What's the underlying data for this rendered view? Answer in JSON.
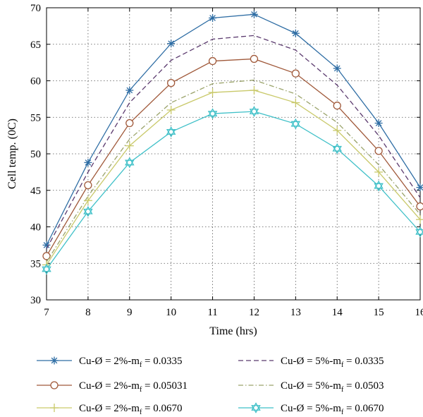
{
  "chart_data": {
    "type": "line",
    "title": "",
    "xlabel": "Time (hrs)",
    "ylabel": "Cell temp. (0C)",
    "xlim": [
      7,
      16
    ],
    "ylim": [
      30,
      70
    ],
    "x_ticks": [
      7,
      8,
      9,
      10,
      11,
      12,
      13,
      14,
      15,
      16
    ],
    "y_ticks": [
      30,
      35,
      40,
      45,
      50,
      55,
      60,
      65,
      70
    ],
    "grid": true,
    "legend_placement": "bottom",
    "x": [
      7,
      8,
      9,
      10,
      11,
      12,
      13,
      14,
      15,
      16
    ],
    "series": [
      {
        "name": "2%-0.0335",
        "label_main": "Cu-Ø = 2%-m",
        "label_sub": "f",
        "label_tail": " = 0.0335",
        "color": "#2e6da4",
        "dash": "solid",
        "marker": "star",
        "values": [
          37.5,
          48.8,
          58.7,
          65.1,
          68.6,
          69.1,
          66.5,
          61.7,
          54.2,
          45.4
        ]
      },
      {
        "name": "5%-0.0335",
        "label_main": "Cu-Ø = 5%-m",
        "label_sub": "f",
        "label_tail": " = 0.0335",
        "color": "#5b3a6e",
        "dash": "dashed",
        "marker": "none",
        "values": [
          37.0,
          47.5,
          57.0,
          62.8,
          65.7,
          66.2,
          64.2,
          59.4,
          52.5,
          44.0
        ]
      },
      {
        "name": "2%-0.05031",
        "label_main": "Cu-Ø = 2%-m",
        "label_sub": "f",
        "label_tail": " = 0.05031",
        "color": "#a0593a",
        "dash": "solid",
        "marker": "circle",
        "values": [
          36.0,
          45.7,
          54.2,
          59.7,
          62.7,
          63.0,
          61.0,
          56.6,
          50.4,
          42.8
        ]
      },
      {
        "name": "5%-0.0503",
        "label_main": "Cu-Ø = 5%-m",
        "label_sub": "f",
        "label_tail": " = 0.0503",
        "color": "#9aa36a",
        "dash": "dashdot",
        "marker": "none",
        "values": [
          35.2,
          44.2,
          52.0,
          57.0,
          59.6,
          60.1,
          58.2,
          54.3,
          48.5,
          41.7
        ]
      },
      {
        "name": "2%-0.0670",
        "label_main": "Cu-Ø = 2%-m",
        "label_sub": "f",
        "label_tail": " = 0.0670",
        "color": "#c9c96a",
        "dash": "solid",
        "marker": "plus",
        "values": [
          34.8,
          43.6,
          51.1,
          56.0,
          58.4,
          58.7,
          57.0,
          53.2,
          47.5,
          41.0
        ]
      },
      {
        "name": "5%-0.0670",
        "label_main": "Cu-Ø = 5%-m",
        "label_sub": "f",
        "label_tail": " = 0.0670",
        "color": "#3fc0c8",
        "dash": "solid",
        "marker": "hexagram",
        "values": [
          34.2,
          42.1,
          48.8,
          53.0,
          55.5,
          55.8,
          54.1,
          50.7,
          45.6,
          39.3
        ]
      }
    ]
  }
}
